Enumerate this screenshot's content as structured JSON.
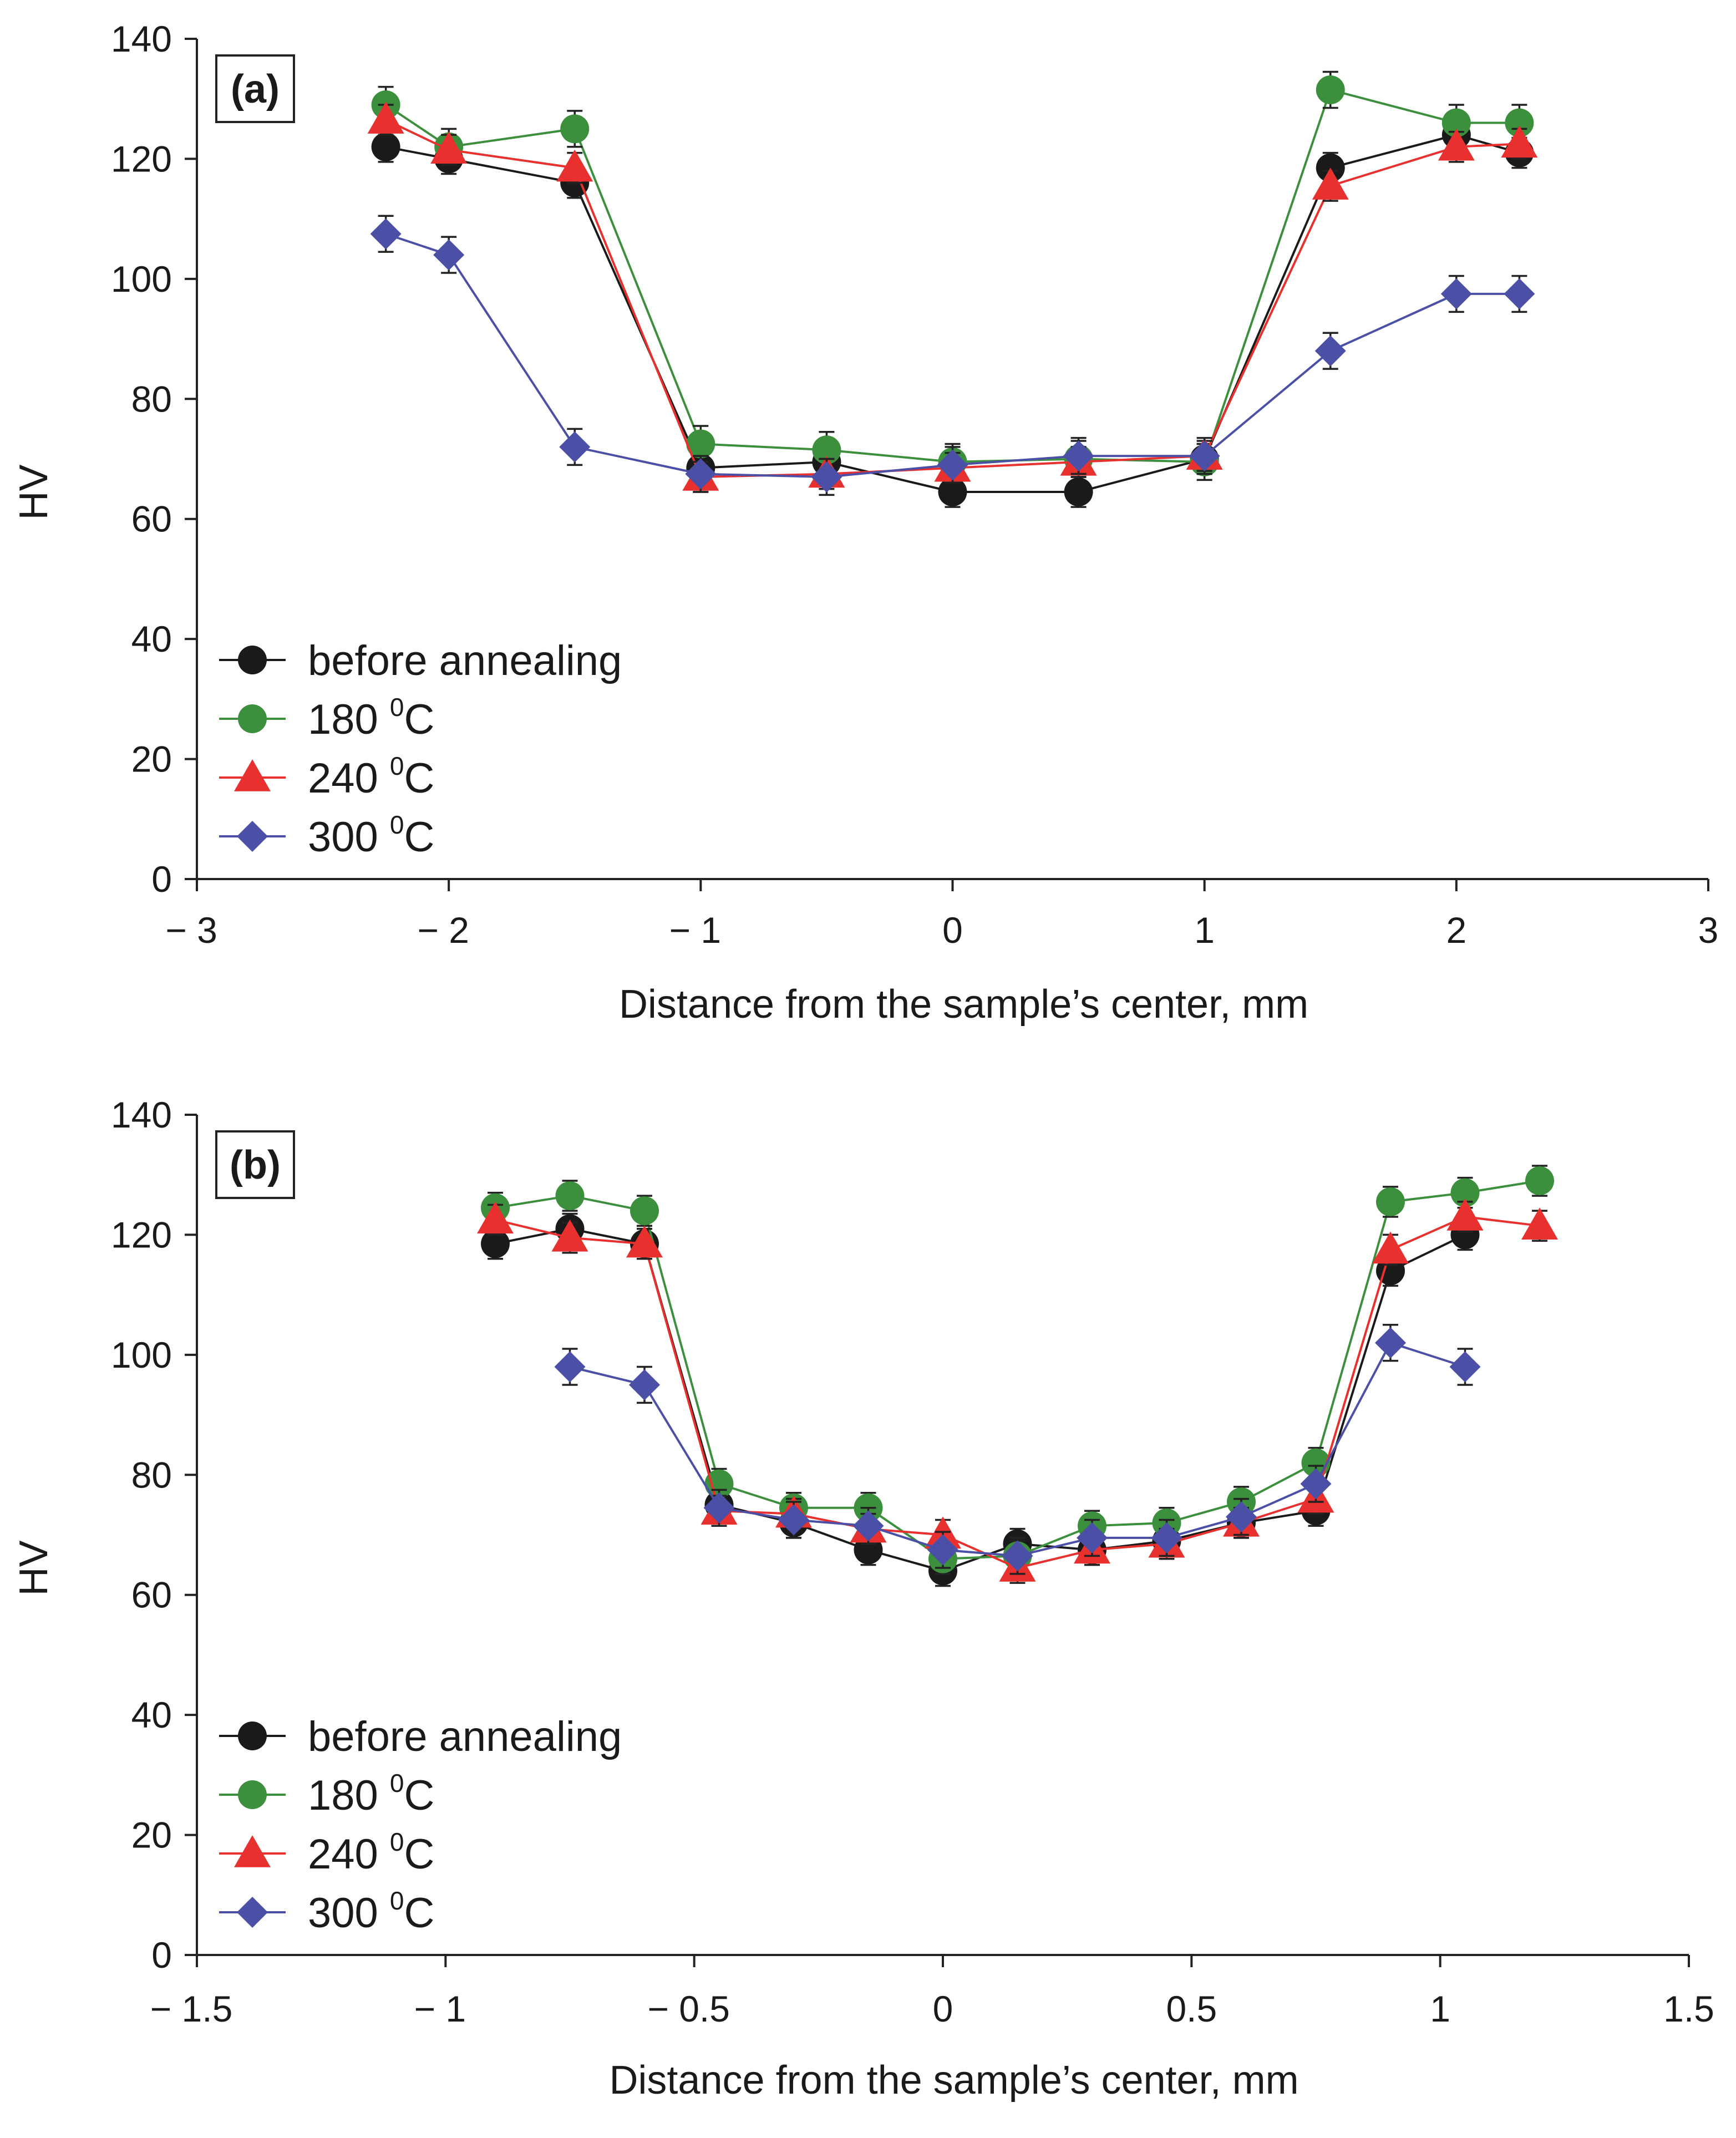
{
  "chart_data": [
    {
      "type": "line",
      "panel_label": "(a)",
      "title": "",
      "xlabel": "Distance from the sample’s center, mm",
      "ylabel": "HV",
      "xlim": [
        -3,
        3
      ],
      "ylim": [
        0,
        140
      ],
      "xticks": [
        -3,
        -2,
        -1,
        0,
        1,
        2,
        3
      ],
      "xtick_labels": [
        "− 3",
        "− 2",
        "− 1",
        "0",
        "1",
        "2",
        "3"
      ],
      "yticks": [
        0,
        20,
        40,
        60,
        80,
        100,
        120,
        140
      ],
      "ytick_labels": [
        "0",
        "20",
        "40",
        "60",
        "80",
        "100",
        "120",
        "140"
      ],
      "grid": false,
      "legend_position": "bottom-left",
      "error_bars": true,
      "series": [
        {
          "name": "before annealing",
          "marker": "circle",
          "color": "#1a1a1a",
          "x": [
            -2.25,
            -2.0,
            -1.5,
            -1.0,
            -0.5,
            0.0,
            0.5,
            1.0,
            1.5,
            2.0,
            2.25
          ],
          "y": [
            122,
            120,
            116,
            68.5,
            69.5,
            64.5,
            64.5,
            70,
            118.5,
            124,
            121
          ],
          "err": [
            2.5,
            2.5,
            2.5,
            2.5,
            2.5,
            2.5,
            2.5,
            2.5,
            2.5,
            2.5,
            2.5
          ]
        },
        {
          "name": "180 °C",
          "label_main": "180 ",
          "label_sup": "0",
          "label_unit": "C",
          "marker": "circle",
          "color": "#3c8f3c",
          "x": [
            -2.25,
            -2.0,
            -1.5,
            -1.0,
            -0.5,
            0.0,
            0.5,
            1.0,
            1.5,
            2.0,
            2.25
          ],
          "y": [
            129,
            122,
            125,
            72.5,
            71.5,
            69.5,
            70,
            69.5,
            131.5,
            126,
            126
          ],
          "err": [
            3,
            3,
            3,
            3,
            3,
            3,
            3,
            3,
            3,
            3,
            3
          ]
        },
        {
          "name": "240 °C",
          "label_main": "240 ",
          "label_sup": "0",
          "label_unit": "C",
          "marker": "triangle",
          "color": "#e8312f",
          "x": [
            -2.25,
            -2.0,
            -1.5,
            -1.0,
            -0.5,
            0.0,
            0.5,
            1.0,
            1.5,
            2.0,
            2.25
          ],
          "y": [
            126.5,
            121.5,
            118.5,
            67,
            67.5,
            68.5,
            69.5,
            70.5,
            115.5,
            122,
            122.5
          ],
          "err": [
            2.5,
            2.5,
            2.5,
            2.5,
            2.5,
            2.5,
            2.5,
            2.5,
            2.5,
            2.5,
            2.5
          ]
        },
        {
          "name": "300 °C",
          "label_main": "300 ",
          "label_sup": "0",
          "label_unit": "C",
          "marker": "diamond",
          "color": "#4b4fa6",
          "x": [
            -2.25,
            -2.0,
            -1.5,
            -1.0,
            -0.5,
            0.0,
            0.5,
            1.0,
            1.5,
            2.0,
            2.25
          ],
          "y": [
            107.5,
            104,
            72,
            67.5,
            67,
            69,
            70.5,
            70.5,
            88,
            97.5,
            97.5
          ],
          "err": [
            3,
            3,
            3,
            3,
            3,
            3,
            3,
            3,
            3,
            3,
            3
          ]
        }
      ]
    },
    {
      "type": "line",
      "panel_label": "(b)",
      "title": "",
      "xlabel": "Distance from the sample’s center, mm",
      "ylabel": "HV",
      "xlim": [
        -1.5,
        1.5
      ],
      "ylim": [
        0,
        140
      ],
      "xticks": [
        -1.5,
        -1,
        -0.5,
        0,
        0.5,
        1,
        1.5
      ],
      "xtick_labels": [
        "− 1.5",
        "− 1",
        "− 0.5",
        "0",
        "0.5",
        "1",
        "1.5"
      ],
      "yticks": [
        0,
        20,
        40,
        60,
        80,
        100,
        120,
        140
      ],
      "ytick_labels": [
        "0",
        "20",
        "40",
        "60",
        "80",
        "100",
        "120",
        "140"
      ],
      "grid": false,
      "legend_position": "bottom-left",
      "error_bars": true,
      "series": [
        {
          "name": "before annealing",
          "marker": "circle",
          "color": "#1a1a1a",
          "x": [
            -0.9,
            -0.75,
            -0.6,
            -0.45,
            -0.3,
            -0.15,
            0.0,
            0.15,
            0.3,
            0.45,
            0.6,
            0.75,
            0.9,
            1.05
          ],
          "y": [
            118.5,
            121,
            118.5,
            75,
            72,
            67.5,
            64,
            68.5,
            67.5,
            69,
            72,
            74,
            114,
            120
          ],
          "err": [
            2.5,
            2.5,
            2.5,
            2.5,
            2.5,
            2.5,
            2.5,
            2.5,
            2.5,
            2.5,
            2.5,
            2.5,
            2.5,
            2.5
          ]
        },
        {
          "name": "180 °C",
          "label_main": "180 ",
          "label_sup": "0",
          "label_unit": "C",
          "marker": "circle",
          "color": "#3c8f3c",
          "x": [
            -0.9,
            -0.75,
            -0.6,
            -0.45,
            -0.3,
            -0.15,
            0.0,
            0.15,
            0.3,
            0.45,
            0.6,
            0.75,
            0.9,
            1.05,
            1.2
          ],
          "y": [
            124.5,
            126.5,
            124,
            78.5,
            74.5,
            74.5,
            66,
            66.5,
            71.5,
            72,
            75.5,
            82,
            125.5,
            127,
            129
          ],
          "err": [
            2.5,
            2.5,
            2.5,
            2.5,
            2.5,
            2.5,
            2.5,
            2.5,
            2.5,
            2.5,
            2.5,
            2.5,
            2.5,
            2.5,
            2.5
          ]
        },
        {
          "name": "240 °C",
          "label_main": "240 ",
          "label_sup": "0",
          "label_unit": "C",
          "marker": "triangle",
          "color": "#e8312f",
          "x": [
            -0.9,
            -0.75,
            -0.6,
            -0.45,
            -0.3,
            -0.15,
            0.0,
            0.15,
            0.3,
            0.45,
            0.6,
            0.75,
            0.9,
            1.05,
            1.2
          ],
          "y": [
            122.5,
            119.5,
            118.5,
            74,
            73.5,
            71,
            70,
            64.5,
            67.5,
            68.5,
            72,
            76,
            117.5,
            123,
            121.5
          ],
          "err": [
            2.5,
            2.5,
            2.5,
            2.5,
            2.5,
            2.5,
            2.5,
            2.5,
            2.5,
            2.5,
            2.5,
            2.5,
            2.5,
            2.5,
            2.5
          ]
        },
        {
          "name": "300 °C",
          "label_main": "300 ",
          "label_sup": "0",
          "label_unit": "C",
          "marker": "diamond",
          "color": "#4b4fa6",
          "x": [
            -0.75,
            -0.6,
            -0.45,
            -0.3,
            -0.15,
            0.0,
            0.15,
            0.3,
            0.45,
            0.6,
            0.75,
            0.9,
            1.05
          ],
          "y": [
            98,
            95,
            74.5,
            72.5,
            71.5,
            67.5,
            66.5,
            69.5,
            69.5,
            73,
            78.5,
            102,
            98
          ],
          "err": [
            3,
            3,
            3,
            3,
            3,
            3,
            3,
            3,
            3,
            3,
            3,
            3,
            3
          ]
        }
      ]
    }
  ]
}
